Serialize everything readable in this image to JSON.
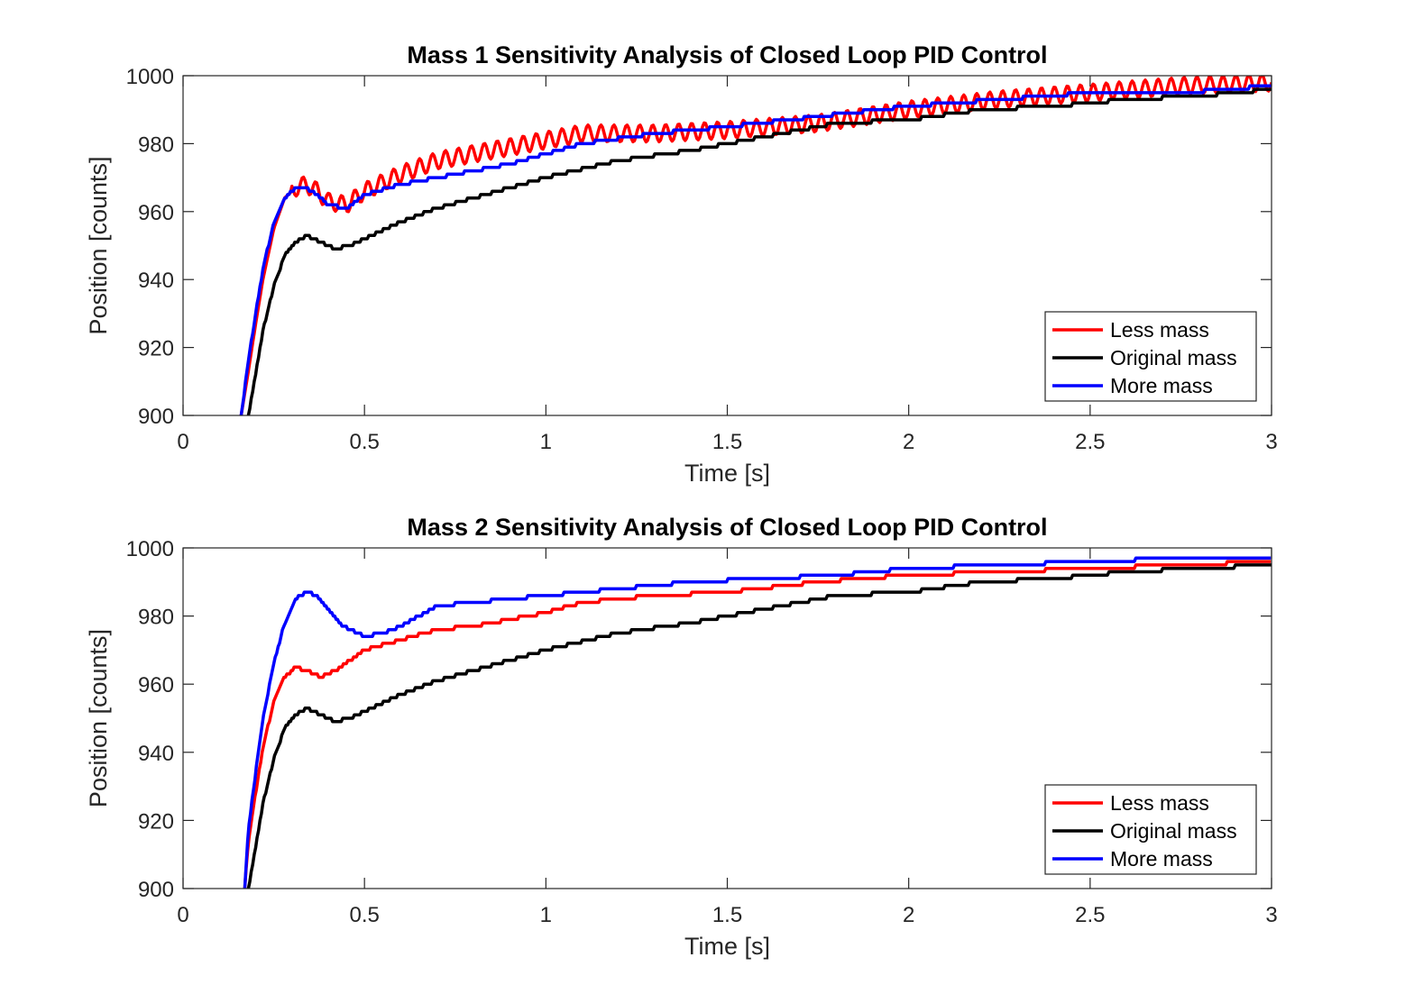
{
  "colors": {
    "less": "#ff0000",
    "original": "#000000",
    "more": "#0000ff",
    "axis": "#262626"
  },
  "chart_data": [
    {
      "type": "line",
      "title": "Mass 1 Sensitivity Analysis of Closed Loop PID Control",
      "xlabel": "Time [s]",
      "ylabel": "Position [counts]",
      "xlim": [
        0,
        3
      ],
      "ylim": [
        900,
        1000
      ],
      "xticks": [
        0,
        0.5,
        1,
        1.5,
        2,
        2.5,
        3
      ],
      "xtick_labels": [
        "0",
        "0.5",
        "1",
        "1.5",
        "2",
        "2.5",
        "3"
      ],
      "yticks": [
        900,
        920,
        940,
        960,
        980,
        1000
      ],
      "ytick_labels": [
        "900",
        "920",
        "940",
        "960",
        "980",
        "1000"
      ],
      "grid": false,
      "legend": "bottom-right",
      "series": [
        {
          "name": "Less mass",
          "color": "#ff0000",
          "osc": 2.5,
          "x": [
            0.16,
            0.18,
            0.2,
            0.22,
            0.25,
            0.28,
            0.31,
            0.34,
            0.37,
            0.4,
            0.45,
            0.5,
            0.6,
            0.7,
            0.8,
            0.9,
            1.0,
            1.1,
            1.3,
            1.5,
            1.75,
            2.0,
            2.25,
            2.5,
            2.75,
            3.0
          ],
          "y": [
            900,
            913,
            927,
            940,
            955,
            964,
            967,
            968,
            966,
            963,
            962,
            966,
            971,
            975,
            977,
            979,
            981,
            983,
            983,
            984,
            986,
            990,
            993,
            995,
            997,
            998
          ]
        },
        {
          "name": "Original mass",
          "color": "#000000",
          "osc": 0,
          "x": [
            0.18,
            0.2,
            0.22,
            0.25,
            0.28,
            0.31,
            0.34,
            0.38,
            0.42,
            0.46,
            0.5,
            0.6,
            0.7,
            0.8,
            0.9,
            1.0,
            1.2,
            1.4,
            1.6,
            1.8,
            2.0,
            2.2,
            2.4,
            2.6,
            2.8,
            3.0
          ],
          "y": [
            900,
            912,
            925,
            938,
            947,
            951,
            953,
            951,
            949,
            950,
            952,
            957,
            961,
            964,
            967,
            970,
            975,
            978,
            982,
            986,
            987,
            990,
            991,
            993,
            994,
            996
          ]
        },
        {
          "name": "More mass",
          "color": "#0000ff",
          "osc": 0,
          "x": [
            0.16,
            0.18,
            0.2,
            0.22,
            0.25,
            0.28,
            0.31,
            0.34,
            0.37,
            0.4,
            0.45,
            0.5,
            0.6,
            0.7,
            0.8,
            0.9,
            1.0,
            1.1,
            1.3,
            1.5,
            1.75,
            2.0,
            2.25,
            2.5,
            2.75,
            3.0
          ],
          "y": [
            900,
            916,
            930,
            943,
            957,
            964,
            967,
            967,
            965,
            962,
            961,
            965,
            968,
            970,
            972,
            974,
            977,
            980,
            983,
            985,
            988,
            991,
            993,
            995,
            995,
            997
          ]
        }
      ]
    },
    {
      "type": "line",
      "title": "Mass 2 Sensitivity Analysis of Closed Loop PID Control",
      "xlabel": "Time [s]",
      "ylabel": "Position [counts]",
      "xlim": [
        0,
        3
      ],
      "ylim": [
        900,
        1000
      ],
      "xticks": [
        0,
        0.5,
        1,
        1.5,
        2,
        2.5,
        3
      ],
      "xtick_labels": [
        "0",
        "0.5",
        "1",
        "1.5",
        "2",
        "2.5",
        "3"
      ],
      "yticks": [
        900,
        920,
        940,
        960,
        980,
        1000
      ],
      "ytick_labels": [
        "900",
        "920",
        "940",
        "960",
        "980",
        "1000"
      ],
      "grid": false,
      "legend": "bottom-right",
      "series": [
        {
          "name": "Less mass",
          "color": "#ff0000",
          "osc": 0,
          "x": [
            0.17,
            0.18,
            0.2,
            0.22,
            0.25,
            0.28,
            0.31,
            0.34,
            0.38,
            0.42,
            0.46,
            0.5,
            0.6,
            0.7,
            0.8,
            0.9,
            1.0,
            1.1,
            1.3,
            1.5,
            1.75,
            2.0,
            2.25,
            2.5,
            2.75,
            3.0
          ],
          "y": [
            900,
            914,
            928,
            941,
            955,
            962,
            965,
            964,
            962,
            964,
            967,
            970,
            973,
            976,
            977,
            979,
            981,
            984,
            986,
            987,
            990,
            992,
            993,
            994,
            995,
            996
          ]
        },
        {
          "name": "Original mass",
          "color": "#000000",
          "osc": 0,
          "x": [
            0.18,
            0.2,
            0.22,
            0.25,
            0.28,
            0.31,
            0.34,
            0.38,
            0.42,
            0.46,
            0.5,
            0.6,
            0.7,
            0.8,
            0.9,
            1.0,
            1.2,
            1.4,
            1.6,
            1.8,
            2.0,
            2.2,
            2.4,
            2.6,
            2.8,
            3.0
          ],
          "y": [
            900,
            912,
            925,
            938,
            947,
            951,
            953,
            951,
            949,
            950,
            952,
            957,
            961,
            964,
            967,
            970,
            975,
            978,
            982,
            986,
            987,
            990,
            991,
            993,
            994,
            995
          ]
        },
        {
          "name": "More mass",
          "color": "#0000ff",
          "osc": 0,
          "x": [
            0.17,
            0.18,
            0.2,
            0.22,
            0.25,
            0.28,
            0.31,
            0.34,
            0.37,
            0.4,
            0.43,
            0.46,
            0.5,
            0.55,
            0.6,
            0.65,
            0.7,
            0.8,
            0.9,
            1.0,
            1.2,
            1.4,
            1.6,
            1.8,
            2.0,
            2.25,
            2.5,
            2.75,
            3.0
          ],
          "y": [
            900,
            917,
            934,
            950,
            966,
            978,
            985,
            987,
            986,
            982,
            978,
            976,
            974,
            975,
            977,
            980,
            983,
            984,
            985,
            986,
            988,
            990,
            991,
            992,
            994,
            995,
            996,
            997,
            997
          ]
        }
      ]
    }
  ]
}
